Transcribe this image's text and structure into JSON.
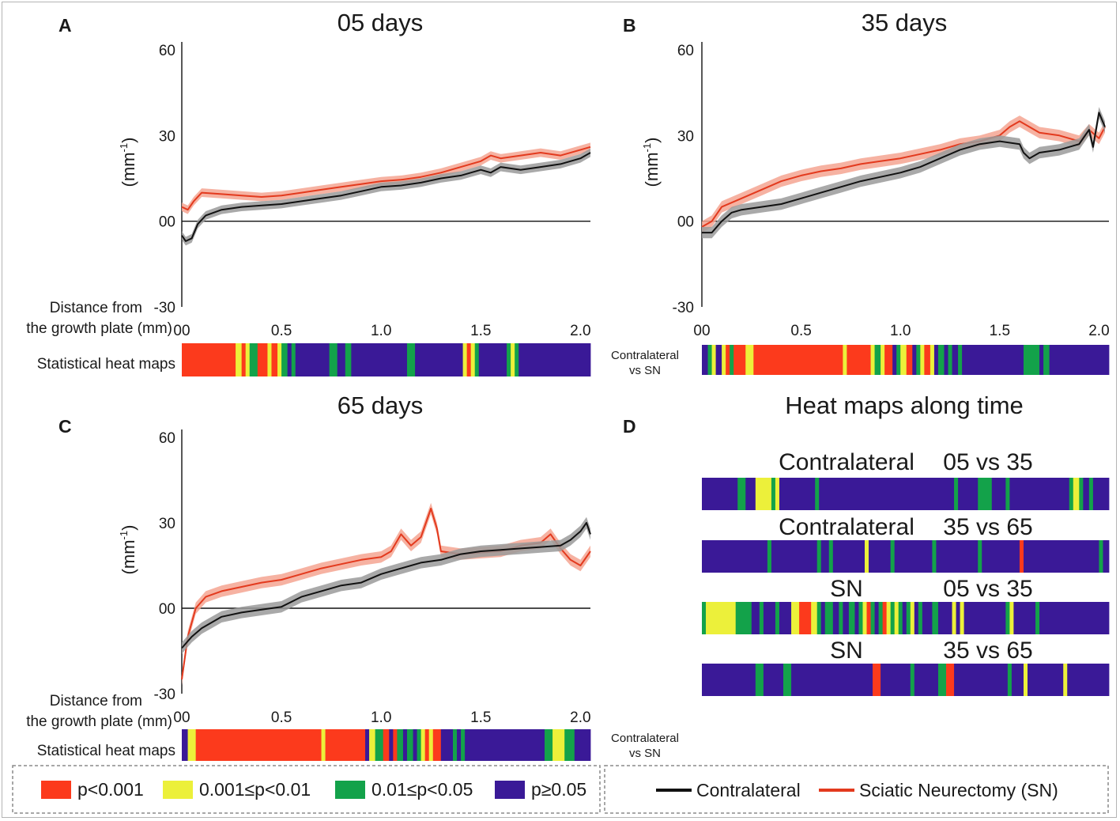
{
  "colors": {
    "sig_high": "#fc3a1c",
    "sig_mid": "#ecf03a",
    "sig_low": "#13a24a",
    "nonsig": "#3a1997",
    "contralateral": "#111111",
    "sn": "#e33a1e",
    "sn_band": "#f5a592",
    "contra_band": "#9a9a9a"
  },
  "chart_data": [
    {
      "id": "A",
      "type": "line",
      "title": "05 days",
      "panel_label": "A",
      "ylabel": "(mm-1)",
      "ylabel_main": "(mm",
      "ylabel_sup": "-1",
      "ylabel_close": ")",
      "ylim": [
        -30,
        60
      ],
      "xlim": [
        0,
        2.05
      ],
      "yticks": [
        "60",
        "30",
        "00",
        "-30"
      ],
      "ytick_values": [
        60,
        30,
        0,
        -30
      ],
      "xticks": [
        "00",
        "0.5",
        "1.0",
        "1.5",
        "2.0"
      ],
      "xtick_values": [
        0,
        0.5,
        1.0,
        1.5,
        2.0
      ],
      "xlabel_lines": [
        "Distance from",
        "the growth plate (mm)"
      ],
      "heatmap_label": "Statistical heat maps",
      "series": [
        {
          "name": "Contralateral",
          "color_key": "contralateral",
          "band_key": "contra_band",
          "x": [
            0,
            0.02,
            0.05,
            0.08,
            0.12,
            0.2,
            0.3,
            0.4,
            0.5,
            0.6,
            0.7,
            0.8,
            0.9,
            1.0,
            1.1,
            1.2,
            1.3,
            1.4,
            1.5,
            1.55,
            1.6,
            1.7,
            1.8,
            1.9,
            2.0,
            2.05
          ],
          "y": [
            -5,
            -7,
            -6,
            -1,
            2,
            4,
            5,
            5.5,
            6,
            7,
            8,
            9,
            10.5,
            12,
            12.5,
            13.5,
            15,
            16,
            18,
            17,
            19,
            18,
            19,
            20,
            22,
            24
          ],
          "band": 1.5
        },
        {
          "name": "Sciatic Neurectomy (SN)",
          "color_key": "sn",
          "band_key": "sn_band",
          "x": [
            0,
            0.03,
            0.06,
            0.1,
            0.2,
            0.3,
            0.4,
            0.5,
            0.6,
            0.7,
            0.8,
            0.9,
            1.0,
            1.1,
            1.2,
            1.3,
            1.4,
            1.5,
            1.55,
            1.6,
            1.7,
            1.8,
            1.9,
            2.0,
            2.05
          ],
          "y": [
            5,
            4,
            7,
            10,
            9.5,
            9,
            8.5,
            9,
            10,
            11,
            12,
            13,
            14,
            14.5,
            15.5,
            17,
            19,
            21,
            23,
            22,
            23,
            24,
            23,
            25,
            26
          ],
          "band": 1.5
        }
      ],
      "heatmap": [
        "0-0.27:h",
        "0.27-0.30:m",
        "0.30-0.32:h",
        "0.32-0.34:m",
        "0.34-0.38:l",
        "0.38-0.43:h",
        "0.43-0.45:m",
        "0.45-0.48:h",
        "0.48-0.50:m",
        "0.50-0.53:l",
        "0.53-0.55:n",
        "0.55-0.57:l",
        "0.57-0.74:n",
        "0.74-0.78:l",
        "0.78-0.82:n",
        "0.82-0.85:l",
        "0.85-1.13:n",
        "1.13-1.17:l",
        "1.17-1.41:n",
        "1.41-1.43:m",
        "1.43-1.45:h",
        "1.45-1.47:m",
        "1.47-1.49:l",
        "1.49-1.63:n",
        "1.63-1.65:l",
        "1.65-1.67:m",
        "1.67-1.69:l",
        "1.69-2.05:n"
      ]
    },
    {
      "id": "B",
      "type": "line",
      "title": "35 days",
      "panel_label": "B",
      "ylabel": "(mm-1)",
      "ylabel_main": "(mm",
      "ylabel_sup": "-1",
      "ylabel_close": ")",
      "ylim": [
        -30,
        60
      ],
      "xlim": [
        0,
        2.05
      ],
      "yticks": [
        "60",
        "30",
        "00",
        "-30"
      ],
      "ytick_values": [
        60,
        30,
        0,
        -30
      ],
      "xticks": [
        "00",
        "0.5",
        "1.0",
        "1.5",
        "2.0"
      ],
      "xtick_values": [
        0,
        0.5,
        1.0,
        1.5,
        2.0
      ],
      "heatmap_label_lines": [
        "Contralateral",
        "vs SN"
      ],
      "series": [
        {
          "name": "Contralateral",
          "color_key": "contralateral",
          "band_key": "contra_band",
          "x": [
            0,
            0.05,
            0.1,
            0.15,
            0.2,
            0.3,
            0.4,
            0.5,
            0.6,
            0.7,
            0.8,
            0.9,
            1.0,
            1.1,
            1.2,
            1.3,
            1.4,
            1.5,
            1.6,
            1.62,
            1.65,
            1.7,
            1.8,
            1.9,
            1.95,
            1.97,
            2.0,
            2.03
          ],
          "y": [
            -4,
            -4,
            0,
            3,
            4,
            5,
            6,
            8,
            10,
            12,
            14,
            15.5,
            17,
            19,
            22,
            25,
            27,
            28,
            27,
            24,
            22,
            24,
            25,
            27,
            32,
            26,
            38,
            33
          ],
          "band": 2
        },
        {
          "name": "Sciatic Neurectomy (SN)",
          "color_key": "sn",
          "band_key": "sn_band",
          "x": [
            0,
            0.05,
            0.1,
            0.2,
            0.3,
            0.4,
            0.5,
            0.6,
            0.7,
            0.8,
            0.9,
            1.0,
            1.1,
            1.2,
            1.3,
            1.4,
            1.5,
            1.55,
            1.6,
            1.65,
            1.7,
            1.8,
            1.9,
            1.95,
            2.0,
            2.03
          ],
          "y": [
            -2,
            0,
            5,
            8,
            11,
            14,
            16,
            17.5,
            18.5,
            20,
            21,
            22,
            23.5,
            25,
            27,
            28,
            30,
            33,
            35,
            33,
            31,
            30,
            28,
            32,
            29,
            33
          ],
          "band": 2
        }
      ],
      "heatmap": [
        "0-0.03:n",
        "0.03-0.05:l",
        "0.05-0.07:m",
        "0.07-0.10:n",
        "0.10-0.12:m",
        "0.12-0.14:h",
        "0.14-0.16:l",
        "0.16-0.22:h",
        "0.22-0.26:m",
        "0.26-0.71:h",
        "0.71-0.73:m",
        "0.73-0.85:h",
        "0.85-0.87:m",
        "0.87-0.90:l",
        "0.90-0.92:m",
        "0.92-0.96:h",
        "0.96-0.98:n",
        "0.98-1.00:l",
        "1.00-1.03:m",
        "1.03-1.06:h",
        "1.06-1.08:n",
        "1.08-1.10:l",
        "1.10-1.12:m",
        "1.12-1.15:h",
        "1.15-1.17:m",
        "1.17-1.19:n",
        "1.19-1.22:l",
        "1.22-1.24:n",
        "1.24-1.26:l",
        "1.26-1.29:n",
        "1.29-1.31:l",
        "1.31-1.62:n",
        "1.62-1.70:l",
        "1.70-1.72:n",
        "1.72-1.75:l",
        "1.75-2.05:n"
      ]
    },
    {
      "id": "C",
      "type": "line",
      "title": "65 days",
      "panel_label": "C",
      "ylabel": "(mm-1)",
      "ylabel_main": "(mm",
      "ylabel_sup": "-1",
      "ylabel_close": ")",
      "ylim": [
        -30,
        60
      ],
      "xlim": [
        0,
        2.05
      ],
      "yticks": [
        "60",
        "30",
        "00",
        "-30"
      ],
      "ytick_values": [
        60,
        30,
        0,
        -30
      ],
      "xticks": [
        "00",
        "0.5",
        "1.0",
        "1.5",
        "2.0"
      ],
      "xtick_values": [
        0,
        0.5,
        1.0,
        1.5,
        2.0
      ],
      "xlabel_lines": [
        "Distance from",
        "the growth plate (mm)"
      ],
      "heatmap_label": "Statistical heat maps",
      "heatmap_side_lines": [
        "Contralateral",
        "vs SN"
      ],
      "series": [
        {
          "name": "Contralateral",
          "color_key": "contralateral",
          "band_key": "contra_band",
          "x": [
            0,
            0.05,
            0.1,
            0.15,
            0.2,
            0.3,
            0.4,
            0.5,
            0.6,
            0.7,
            0.8,
            0.9,
            1.0,
            1.1,
            1.2,
            1.3,
            1.4,
            1.5,
            1.6,
            1.7,
            1.8,
            1.9,
            1.95,
            2.0,
            2.03,
            2.05
          ],
          "y": [
            -14,
            -10,
            -7,
            -5,
            -3,
            -1.5,
            -0.5,
            0.5,
            4,
            6,
            8,
            9,
            12,
            14,
            16,
            17,
            19,
            20,
            20.5,
            21,
            21.5,
            22,
            24,
            27,
            30,
            26
          ],
          "band": 2
        },
        {
          "name": "Sciatic Neurectomy (SN)",
          "color_key": "sn",
          "band_key": "sn_band",
          "x": [
            0,
            0.03,
            0.07,
            0.12,
            0.2,
            0.3,
            0.4,
            0.5,
            0.6,
            0.7,
            0.8,
            0.9,
            1.0,
            1.05,
            1.1,
            1.15,
            1.2,
            1.25,
            1.28,
            1.3,
            1.4,
            1.5,
            1.6,
            1.7,
            1.8,
            1.85,
            1.9,
            1.95,
            2.0,
            2.05
          ],
          "y": [
            -25,
            -10,
            0,
            4,
            6,
            7.5,
            9,
            10,
            12,
            14,
            15.5,
            17,
            18,
            20,
            26,
            22,
            25,
            35,
            28,
            20,
            19,
            19.5,
            20,
            22,
            23,
            26,
            21,
            17,
            15,
            20
          ],
          "band": 2
        }
      ],
      "heatmap": [
        "0-0.03:n",
        "0.03-0.07:m",
        "0.07-0.70:h",
        "0.70-0.72:m",
        "0.72-0.92:h",
        "0.92-0.94:n",
        "0.94-0.97:m",
        "0.97-1.01:l",
        "1.01-1.04:h",
        "1.04-1.06:n",
        "1.06-1.08:h",
        "1.08-1.11:l",
        "1.11-1.13:n",
        "1.13-1.16:l",
        "1.16-1.18:n",
        "1.18-1.20:l",
        "1.20-1.22:m",
        "1.22-1.24:h",
        "1.24-1.26:m",
        "1.26-1.30:h",
        "1.30-1.36:n",
        "1.36-1.38:l",
        "1.38-1.40:n",
        "1.40-1.42:l",
        "1.42-1.82:n",
        "1.82-1.86:l",
        "1.86-1.92:m",
        "1.92-1.97:l",
        "1.97-2.05:n"
      ]
    },
    {
      "id": "D",
      "type": "heatmap",
      "title": "Heat maps along time",
      "panel_label": "D",
      "rows": [
        {
          "group": "Contralateral",
          "compare": "05 vs 35",
          "segments": [
            "0-0.18:n",
            "0.18-0.22:l",
            "0.22-0.27:n",
            "0.27-0.35:m",
            "0.35-0.37:l",
            "0.37-0.39:m",
            "0.39-0.57:n",
            "0.57-0.59:l",
            "0.59-1.27:n",
            "1.27-1.29:l",
            "1.29-1.39:n",
            "1.39-1.46:l",
            "1.46-1.53:n",
            "1.53-1.55:l",
            "1.55-1.85:n",
            "1.85-1.87:l",
            "1.87-1.90:m",
            "1.90-1.92:l",
            "1.92-1.95:n",
            "1.95-1.97:l",
            "1.97-2.05:n"
          ]
        },
        {
          "group": "Contralateral",
          "compare": "35 vs 65",
          "segments": [
            "0-0.33:n",
            "0.33-0.35:l",
            "0.35-0.58:n",
            "0.58-0.60:l",
            "0.60-0.64:n",
            "0.64-0.66:l",
            "0.66-0.82:n",
            "0.82-0.84:m",
            "0.84-0.95:n",
            "0.95-0.97:l",
            "0.97-1.16:n",
            "1.16-1.18:l",
            "1.18-1.39:n",
            "1.39-1.41:l",
            "1.41-1.60:n",
            "1.60-1.62:h",
            "1.62-2.00:n",
            "2.00-2.02:l",
            "2.02-2.05:n"
          ]
        },
        {
          "group": "SN",
          "compare": "05 vs 35",
          "segments": [
            "0-0.02:l",
            "0.02-0.17:m",
            "0.17-0.25:l",
            "0.25-0.29:n",
            "0.29-0.31:l",
            "0.31-0.37:n",
            "0.37-0.39:l",
            "0.39-0.45:n",
            "0.45-0.49:m",
            "0.49-0.55:h",
            "0.55-0.58:m",
            "0.58-0.60:l",
            "0.60-0.62:n",
            "0.62-0.66:l",
            "0.66-0.69:n",
            "0.69-0.71:l",
            "0.71-0.74:n",
            "0.74-0.77:l",
            "0.77-0.79:n",
            "0.79-0.81:l",
            "0.81-0.83:m",
            "0.83-0.85:h",
            "0.85-0.87:l",
            "0.87-0.89:n",
            "0.89-0.91:l",
            "0.91-0.93:h",
            "0.93-0.95:m",
            "0.95-0.97:l",
            "0.97-0.99:m",
            "0.99-1.01:l",
            "1.01-1.03:n",
            "1.03-1.05:l",
            "1.05-1.07:m",
            "1.07-1.09:n",
            "1.09-1.11:l",
            "1.11-1.16:n",
            "1.16-1.19:l",
            "1.19-1.26:n",
            "1.26-1.28:m",
            "1.28-1.30:n",
            "1.30-1.32:m",
            "1.32-1.53:n",
            "1.53-1.55:l",
            "1.55-1.57:m",
            "1.57-1.68:n",
            "1.68-1.70:l",
            "1.70-2.05:n"
          ]
        },
        {
          "group": "SN",
          "compare": "35 vs 65",
          "segments": [
            "0-0.27:n",
            "0.27-0.31:l",
            "0.31-0.41:n",
            "0.41-0.45:l",
            "0.45-0.86:n",
            "0.86-0.90:h",
            "0.90-1.05:n",
            "1.05-1.07:l",
            "1.07-1.19:n",
            "1.19-1.23:l",
            "1.23-1.27:h",
            "1.27-1.54:n",
            "1.54-1.56:l",
            "1.56-1.62:n",
            "1.62-1.64:m",
            "1.64-1.82:n",
            "1.82-1.84:m",
            "1.84-2.05:n"
          ]
        }
      ]
    }
  ],
  "legend_significance": [
    {
      "label": "p<0.001",
      "key": "sig_high"
    },
    {
      "label": "0.001≤p<0.01",
      "key": "sig_mid"
    },
    {
      "label": "0.01≤p<0.05",
      "key": "sig_low"
    },
    {
      "label": "p≥0.05",
      "key": "nonsig"
    }
  ],
  "legend_lines": [
    {
      "label": "Contralateral",
      "key": "contralateral"
    },
    {
      "label": "Sciatic Neurectomy (SN)",
      "key": "sn"
    }
  ]
}
